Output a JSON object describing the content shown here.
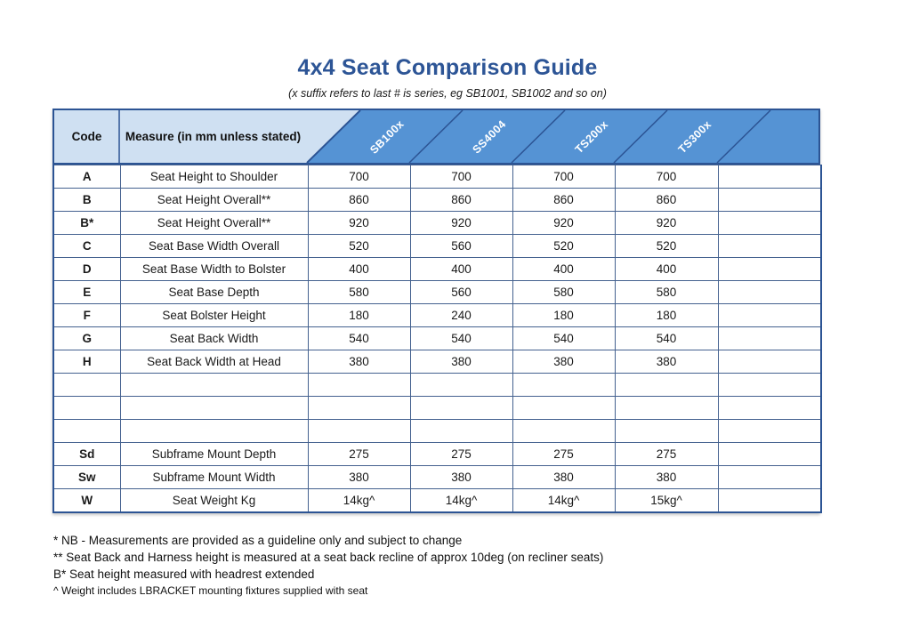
{
  "title": "4x4 Seat Comparison Guide",
  "subtitle": "(x suffix refers to last # is series, eg SB1001, SB1002 and so on)",
  "colors": {
    "title_blue": "#2d5596",
    "header_dark_blue": "#5593d4",
    "header_light_blue": "#cfe0f2",
    "border_navy": "#2c5494",
    "grid_line": "#44618f",
    "header_label_text": "#ffffff"
  },
  "table": {
    "code_header": "Code",
    "measure_header": "Measure (in mm unless stated)",
    "product_columns": [
      "SB100x",
      "SS4004",
      "TS200x",
      "TS300x"
    ],
    "rows": [
      {
        "code": "A",
        "measure": "Seat Height to Shoulder",
        "values": [
          "700",
          "700",
          "700",
          "700"
        ]
      },
      {
        "code": "B",
        "measure": "Seat Height Overall**",
        "values": [
          "860",
          "860",
          "860",
          "860"
        ]
      },
      {
        "code": "B*",
        "measure": "Seat Height Overall**",
        "values": [
          "920",
          "920",
          "920",
          "920"
        ]
      },
      {
        "code": "C",
        "measure": "Seat Base Width Overall",
        "values": [
          "520",
          "560",
          "520",
          "520"
        ]
      },
      {
        "code": "D",
        "measure": "Seat Base Width to Bolster",
        "values": [
          "400",
          "400",
          "400",
          "400"
        ]
      },
      {
        "code": "E",
        "measure": "Seat Base Depth",
        "values": [
          "580",
          "560",
          "580",
          "580"
        ]
      },
      {
        "code": "F",
        "measure": "Seat Bolster Height",
        "values": [
          "180",
          "240",
          "180",
          "180"
        ]
      },
      {
        "code": "G",
        "measure": "Seat Back Width",
        "values": [
          "540",
          "540",
          "540",
          "540"
        ]
      },
      {
        "code": "H",
        "measure": "Seat Back Width at Head",
        "values": [
          "380",
          "380",
          "380",
          "380"
        ]
      },
      {
        "code": "",
        "measure": "",
        "values": [
          "",
          "",
          "",
          ""
        ]
      },
      {
        "code": "",
        "measure": "",
        "values": [
          "",
          "",
          "",
          ""
        ]
      },
      {
        "code": "",
        "measure": "",
        "values": [
          "",
          "",
          "",
          ""
        ]
      },
      {
        "code": "Sd",
        "measure": "Subframe Mount Depth",
        "values": [
          "275",
          "275",
          "275",
          "275"
        ]
      },
      {
        "code": "Sw",
        "measure": "Subframe Mount Width",
        "values": [
          "380",
          "380",
          "380",
          "380"
        ]
      },
      {
        "code": "W",
        "measure": "Seat Weight Kg",
        "values": [
          "14kg^",
          "14kg^",
          "14kg^",
          "15kg^"
        ]
      }
    ]
  },
  "footnotes": [
    "* NB - Measurements are provided as a guideline only and subject to change",
    "** Seat Back and Harness height is measured at a seat back recline of approx 10deg (on recliner seats)",
    "B* Seat height measured with headrest extended",
    "^ Weight includes LBRACKET mounting fixtures supplied with seat"
  ]
}
